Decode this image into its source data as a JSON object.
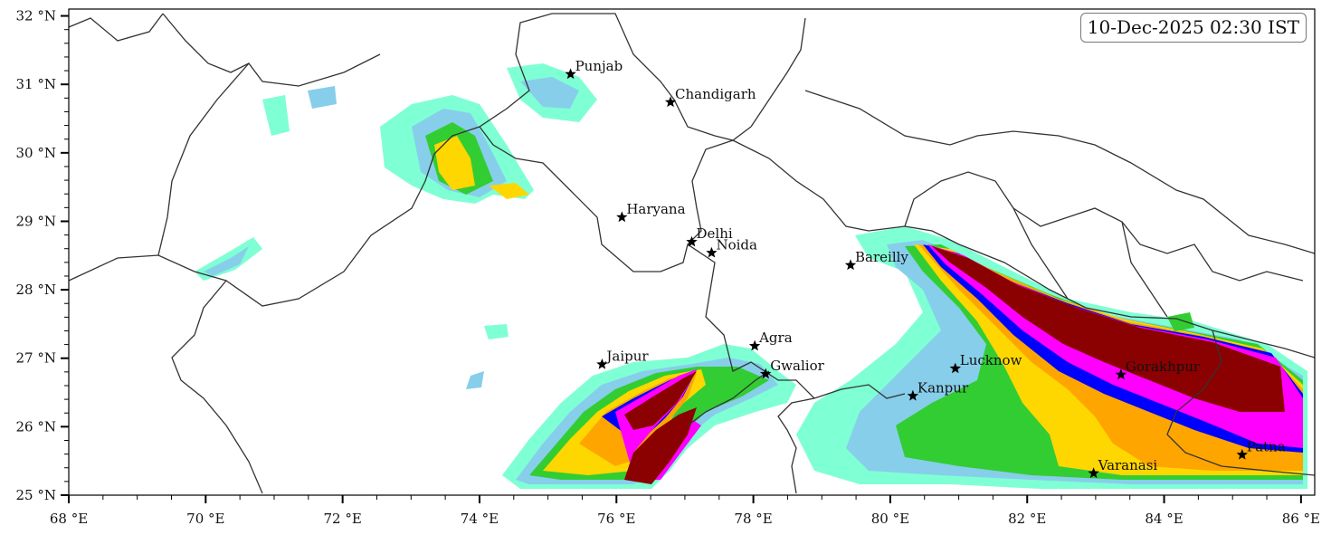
{
  "timestamp": "10-Dec-2025 02:30 IST",
  "lat_ticks": [
    "25 °N",
    "26 °N",
    "27 °N",
    "28 °N",
    "29 °N",
    "30 °N",
    "31 °N",
    "32 °N"
  ],
  "lon_ticks": [
    "68 °E",
    "70 °E",
    "72 °E",
    "74 °E",
    "76 °E",
    "78 °E",
    "80 °E",
    "82 °E",
    "84 °E",
    "86 °E"
  ],
  "extent": {
    "lon": [
      68,
      86.2
    ],
    "lat": [
      25,
      32.1
    ]
  },
  "cities": [
    {
      "name": "Punjab",
      "lon": 75.33,
      "lat": 31.15
    },
    {
      "name": "Chandigarh",
      "lon": 76.79,
      "lat": 30.74
    },
    {
      "name": "Haryana",
      "lon": 76.08,
      "lat": 29.06
    },
    {
      "name": "Delhi",
      "lon": 77.1,
      "lat": 28.7
    },
    {
      "name": "Noida",
      "lon": 77.39,
      "lat": 28.54
    },
    {
      "name": "Bareilly",
      "lon": 79.42,
      "lat": 28.36
    },
    {
      "name": "Agra",
      "lon": 78.02,
      "lat": 27.18
    },
    {
      "name": "Jaipur",
      "lon": 75.79,
      "lat": 26.91
    },
    {
      "name": "Gwalior",
      "lon": 78.18,
      "lat": 26.77
    },
    {
      "name": "Lucknow",
      "lon": 80.95,
      "lat": 26.85
    },
    {
      "name": "Kanpur",
      "lon": 80.33,
      "lat": 26.45
    },
    {
      "name": "Gorakhpur",
      "lon": 83.37,
      "lat": 26.76
    },
    {
      "name": "Varanasi",
      "lon": 82.97,
      "lat": 25.32
    },
    {
      "name": "Patna",
      "lon": 85.14,
      "lat": 25.59
    }
  ],
  "colors": {
    "level1": "#7fffd4",
    "level2": "#87ceeb",
    "level3": "#32cd32",
    "level4": "#ffd700",
    "level5": "#ffa500",
    "level6": "#0000ff",
    "level7": "#ff00ff",
    "level8": "#8b0000",
    "border": "#333333"
  }
}
